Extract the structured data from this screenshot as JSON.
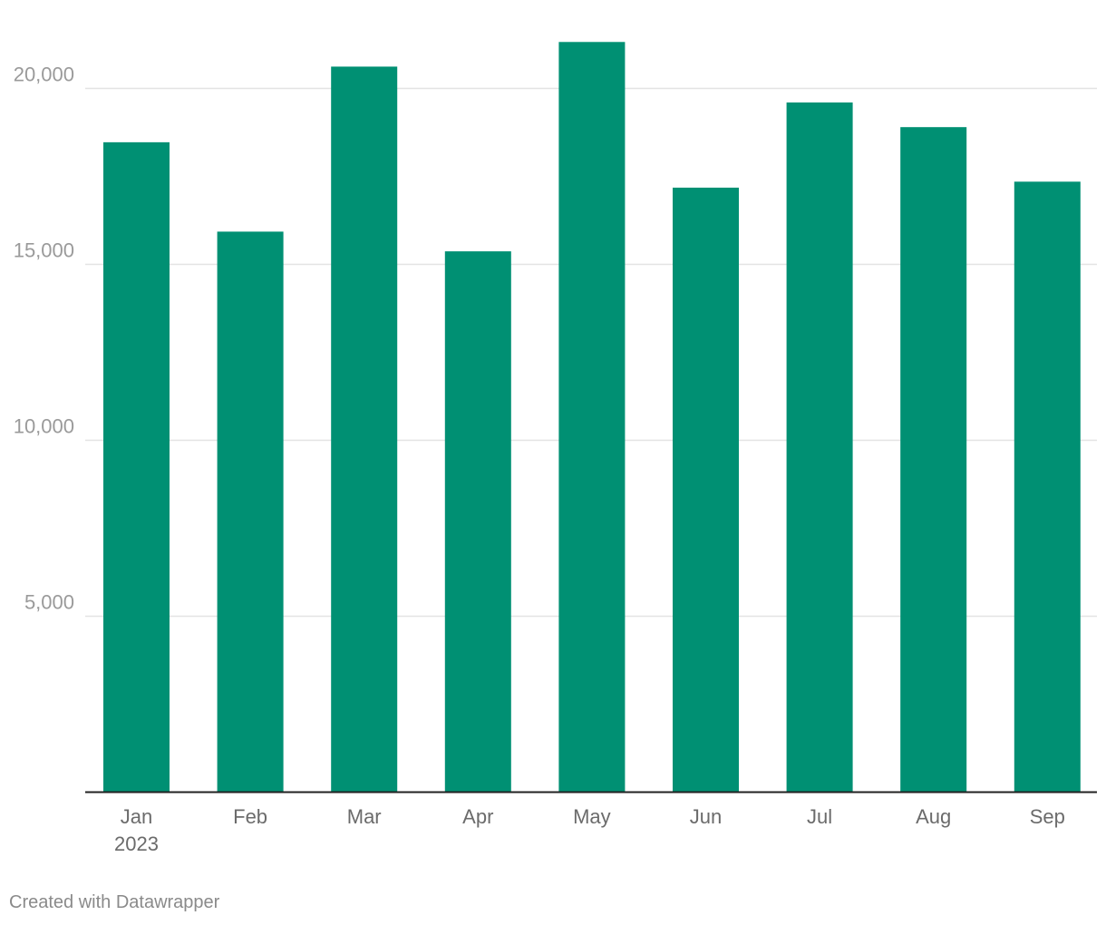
{
  "chart_data": {
    "type": "bar",
    "categories": [
      "Jan",
      "Feb",
      "Mar",
      "Apr",
      "May",
      "Jun",
      "Jul",
      "Aug",
      "Sep"
    ],
    "category_sublabels": [
      "2023",
      "",
      "",
      "",
      "",
      "",
      "",
      "",
      ""
    ],
    "values": [
      18470,
      15930,
      20620,
      15370,
      21320,
      17180,
      19600,
      18900,
      17350
    ],
    "yticks": [
      5000,
      10000,
      15000,
      20000
    ],
    "ytick_labels": [
      "5,000",
      "10,000",
      "15,000",
      "20,000"
    ],
    "ylim": [
      0,
      21400
    ],
    "grid": true,
    "bar_color": "#009073"
  },
  "footer": {
    "credit": "Created with Datawrapper"
  }
}
